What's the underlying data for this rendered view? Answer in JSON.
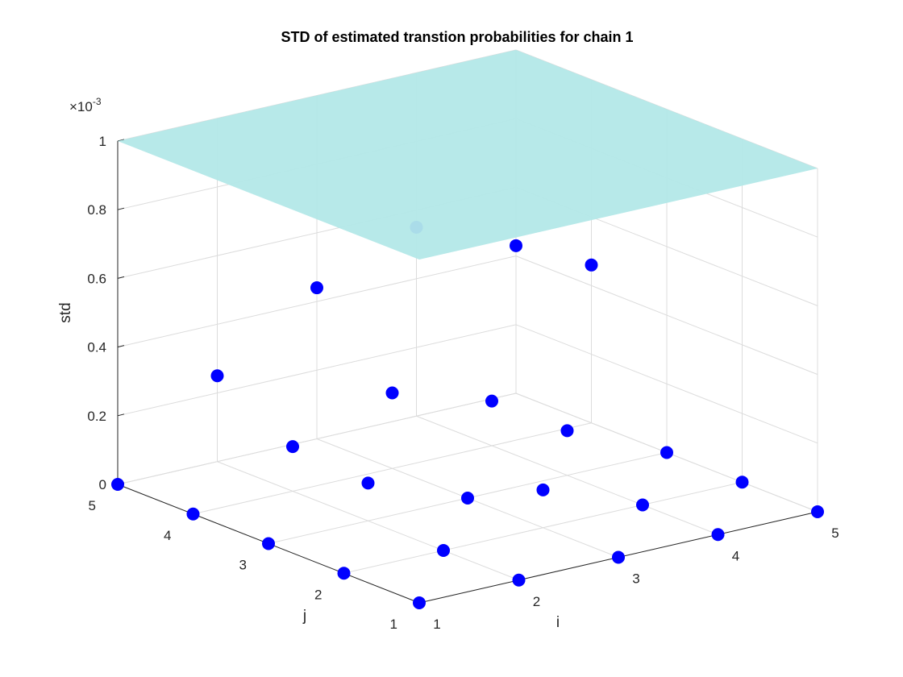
{
  "chart_data": {
    "type": "scatter3d",
    "title": "STD of estimated transtion probabilities for chain 1",
    "xlabel": "i",
    "ylabel": "j",
    "zlabel": "std",
    "exponent_base": "×10",
    "exponent": "-3",
    "xlim": [
      1,
      5
    ],
    "ylim": [
      1,
      5
    ],
    "zlim": [
      0,
      1
    ],
    "xticks": [
      "1",
      "2",
      "3",
      "4",
      "5"
    ],
    "yticks": [
      "1",
      "2",
      "3",
      "4",
      "5"
    ],
    "zticks": [
      "0",
      "0.2",
      "0.4",
      "0.6",
      "0.8",
      "1"
    ],
    "grid": true,
    "plane": {
      "z": 1,
      "color": "#b3e8e8"
    },
    "marker_color": "#0000ff",
    "points": [
      {
        "i": 1,
        "j": 1,
        "z": 0
      },
      {
        "i": 2,
        "j": 1,
        "z": 0
      },
      {
        "i": 3,
        "j": 1,
        "z": 0
      },
      {
        "i": 4,
        "j": 1,
        "z": 0
      },
      {
        "i": 5,
        "j": 1,
        "z": 0
      },
      {
        "i": 1,
        "j": 2,
        "z": 0
      },
      {
        "i": 2,
        "j": 2,
        "z": 0
      },
      {
        "i": 3,
        "j": 2,
        "z": 0.11
      },
      {
        "i": 4,
        "j": 2,
        "z": 0
      },
      {
        "i": 5,
        "j": 2,
        "z": 0
      },
      {
        "i": 1,
        "j": 3,
        "z": 0
      },
      {
        "i": 2,
        "j": 3,
        "z": 0.11
      },
      {
        "i": 3,
        "j": 3,
        "z": 0
      },
      {
        "i": 4,
        "j": 3,
        "z": 0.13
      },
      {
        "i": 5,
        "j": 3,
        "z": 0
      },
      {
        "i": 1,
        "j": 4,
        "z": 0
      },
      {
        "i": 2,
        "j": 4,
        "z": 0.13
      },
      {
        "i": 3,
        "j": 4,
        "z": 0.22
      },
      {
        "i": 4,
        "j": 4,
        "z": 0.13
      },
      {
        "i": 5,
        "j": 4,
        "z": 0.46
      },
      {
        "i": 1,
        "j": 5,
        "z": 0
      },
      {
        "i": 2,
        "j": 5,
        "z": 0.25
      },
      {
        "i": 3,
        "j": 5,
        "z": 0.44
      },
      {
        "i": 4,
        "j": 5,
        "z": 0.55
      },
      {
        "i": 5,
        "j": 5,
        "z": 0.43
      }
    ]
  }
}
